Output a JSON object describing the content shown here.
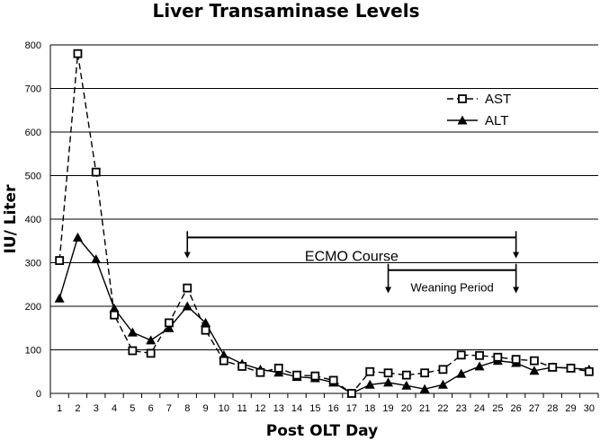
{
  "chart_data": {
    "type": "line",
    "title": "Liver Transaminase Levels",
    "xlabel": "Post OLT Day",
    "ylabel": "IU/ Liter",
    "ylim": [
      0,
      800
    ],
    "yticks": [
      0,
      100,
      200,
      300,
      400,
      500,
      600,
      700,
      800
    ],
    "grid": "horizontal",
    "legend_position": "top-right",
    "x": [
      1,
      2,
      3,
      4,
      5,
      6,
      7,
      8,
      9,
      10,
      11,
      12,
      13,
      14,
      15,
      16,
      17,
      18,
      19,
      20,
      21,
      22,
      23,
      24,
      25,
      26,
      27,
      28,
      29,
      30
    ],
    "series": [
      {
        "name": "AST",
        "marker": "open-square",
        "line": "dashed",
        "color": "#000000",
        "values": [
          305,
          780,
          508,
          180,
          98,
          92,
          162,
          242,
          145,
          75,
          62,
          48,
          58,
          42,
          40,
          30,
          0,
          50,
          47,
          42,
          47,
          55,
          88,
          87,
          83,
          78,
          75,
          60,
          58,
          50
        ]
      },
      {
        "name": "ALT",
        "marker": "filled-triangle",
        "line": "solid",
        "color": "#000000",
        "values": [
          218,
          358,
          308,
          195,
          140,
          122,
          150,
          200,
          162,
          88,
          68,
          55,
          48,
          38,
          35,
          25,
          0,
          20,
          25,
          18,
          10,
          20,
          45,
          62,
          75,
          70,
          52,
          60,
          58,
          55
        ]
      }
    ],
    "annotations": [
      {
        "label": "ECMO Course",
        "x_start": 8,
        "x_end": 26,
        "y": 358,
        "arrow_to": 310
      },
      {
        "label": "Weaning Period",
        "x_start": 19,
        "x_end": 26,
        "y": 283,
        "arrow_to": 230
      }
    ]
  }
}
